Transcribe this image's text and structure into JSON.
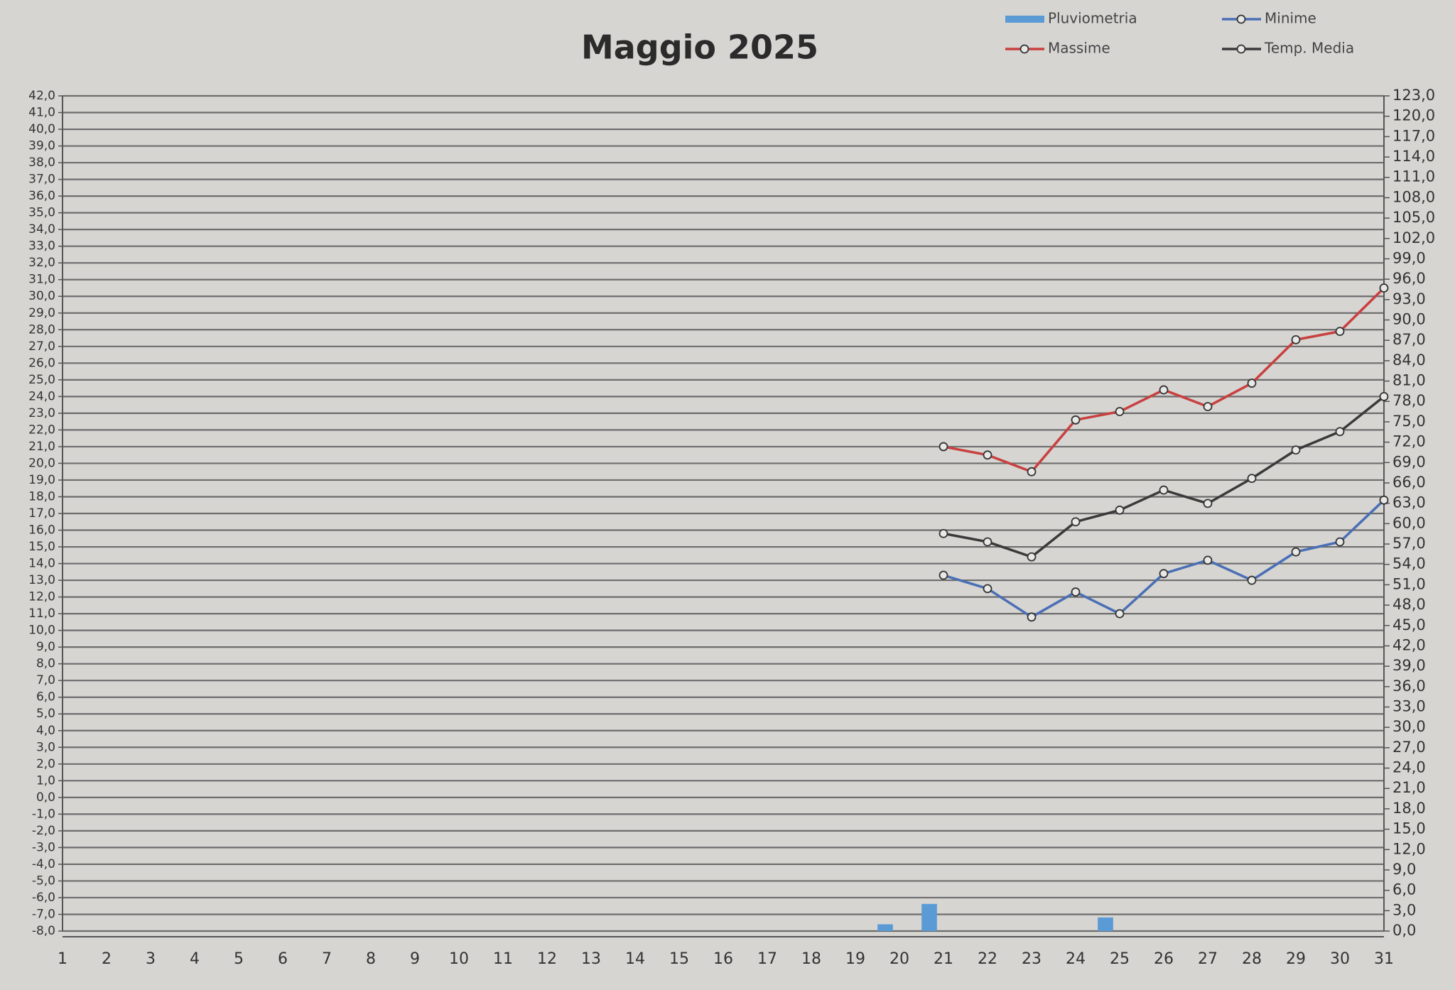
{
  "chart_data": {
    "type": "line",
    "title": "Maggio 2025",
    "categories": [
      "1",
      "2",
      "3",
      "4",
      "5",
      "6",
      "7",
      "8",
      "9",
      "10",
      "11",
      "12",
      "13",
      "14",
      "15",
      "16",
      "17",
      "18",
      "19",
      "20",
      "21",
      "22",
      "23",
      "24",
      "25",
      "26",
      "27",
      "28",
      "29",
      "30",
      "31"
    ],
    "series": [
      {
        "name": "Pluviometria",
        "color": "#5b9bd5",
        "type": "bar",
        "axis": "y2",
        "values": [
          null,
          null,
          null,
          null,
          null,
          null,
          null,
          null,
          null,
          null,
          null,
          null,
          null,
          null,
          null,
          null,
          null,
          null,
          null,
          1.0,
          4.0,
          null,
          null,
          null,
          2.0,
          null,
          null,
          null,
          null,
          null,
          null
        ]
      },
      {
        "name": "Minime",
        "color": "#4a6fb5",
        "values": [
          null,
          null,
          null,
          null,
          null,
          null,
          null,
          null,
          null,
          null,
          null,
          null,
          null,
          null,
          null,
          null,
          null,
          null,
          null,
          null,
          13.3,
          12.5,
          10.8,
          12.3,
          11.0,
          13.4,
          14.2,
          13.0,
          14.7,
          15.3,
          17.8
        ]
      },
      {
        "name": "Massime",
        "color": "#c8403f",
        "values": [
          null,
          null,
          null,
          null,
          null,
          null,
          null,
          null,
          null,
          null,
          null,
          null,
          null,
          null,
          null,
          null,
          null,
          null,
          null,
          null,
          21.0,
          20.5,
          19.5,
          22.6,
          23.1,
          24.4,
          23.4,
          24.8,
          27.4,
          27.9,
          30.5
        ]
      },
      {
        "name": "Temp. Media",
        "color": "#3a3a3a",
        "values": [
          null,
          null,
          null,
          null,
          null,
          null,
          null,
          null,
          null,
          null,
          null,
          null,
          null,
          null,
          null,
          null,
          null,
          null,
          null,
          null,
          15.8,
          15.3,
          14.4,
          16.5,
          17.2,
          18.4,
          17.6,
          19.1,
          20.8,
          21.9,
          24.0
        ]
      }
    ],
    "ylim": [
      -8,
      42
    ],
    "yticks": [
      {
        "value": -8,
        "label": "-8,0"
      },
      {
        "value": -7,
        "label": "-7,0"
      },
      {
        "value": -6,
        "label": "-6,0"
      },
      {
        "value": -5,
        "label": "-5,0"
      },
      {
        "value": -4,
        "label": "-4,0"
      },
      {
        "value": -3,
        "label": "-3,0"
      },
      {
        "value": -2,
        "label": "-2,0"
      },
      {
        "value": -1,
        "label": "-1,0"
      },
      {
        "value": 0,
        "label": "0,0"
      },
      {
        "value": 1,
        "label": "1,0"
      },
      {
        "value": 2,
        "label": "2,0"
      },
      {
        "value": 3,
        "label": "3,0"
      },
      {
        "value": 4,
        "label": "4,0"
      },
      {
        "value": 5,
        "label": "5,0"
      },
      {
        "value": 6,
        "label": "6,0"
      },
      {
        "value": 7,
        "label": "7,0"
      },
      {
        "value": 8,
        "label": "8,0"
      },
      {
        "value": 9,
        "label": "9,0"
      },
      {
        "value": 10,
        "label": "10,0"
      },
      {
        "value": 11,
        "label": "11,0"
      },
      {
        "value": 12,
        "label": "12,0"
      },
      {
        "value": 13,
        "label": "13,0"
      },
      {
        "value": 14,
        "label": "14,0"
      },
      {
        "value": 15,
        "label": "15,0"
      },
      {
        "value": 16,
        "label": "16,0"
      },
      {
        "value": 17,
        "label": "17,0"
      },
      {
        "value": 18,
        "label": "18,0"
      },
      {
        "value": 19,
        "label": "19,0"
      },
      {
        "value": 20,
        "label": "20,0"
      },
      {
        "value": 21,
        "label": "21,0"
      },
      {
        "value": 22,
        "label": "22,0"
      },
      {
        "value": 23,
        "label": "23,0"
      },
      {
        "value": 24,
        "label": "24,0"
      },
      {
        "value": 25,
        "label": "25,0"
      },
      {
        "value": 26,
        "label": "26,0"
      },
      {
        "value": 27,
        "label": "27,0"
      },
      {
        "value": 28,
        "label": "28,0"
      },
      {
        "value": 29,
        "label": "29,0"
      },
      {
        "value": 30,
        "label": "30,0"
      },
      {
        "value": 31,
        "label": "31,0"
      },
      {
        "value": 32,
        "label": "32,0"
      },
      {
        "value": 33,
        "label": "33,0"
      },
      {
        "value": 34,
        "label": "34,0"
      },
      {
        "value": 35,
        "label": "35,0"
      },
      {
        "value": 36,
        "label": "36,0"
      },
      {
        "value": 37,
        "label": "37,0"
      },
      {
        "value": 38,
        "label": "38,0"
      },
      {
        "value": 39,
        "label": "39,0"
      },
      {
        "value": 40,
        "label": "40,0"
      },
      {
        "value": 41,
        "label": "41,0"
      },
      {
        "value": 42,
        "label": "42,0"
      }
    ],
    "y2lim": [
      0,
      123
    ],
    "y2ticks": [
      {
        "value": 0,
        "label": "0,0"
      },
      {
        "value": 3,
        "label": "3,0"
      },
      {
        "value": 6,
        "label": "6,0"
      },
      {
        "value": 9,
        "label": "9,0"
      },
      {
        "value": 12,
        "label": "12,0"
      },
      {
        "value": 15,
        "label": "15,0"
      },
      {
        "value": 18,
        "label": "18,0"
      },
      {
        "value": 21,
        "label": "21,0"
      },
      {
        "value": 24,
        "label": "24,0"
      },
      {
        "value": 27,
        "label": "27,0"
      },
      {
        "value": 30,
        "label": "30,0"
      },
      {
        "value": 33,
        "label": "33,0"
      },
      {
        "value": 36,
        "label": "36,0"
      },
      {
        "value": 39,
        "label": "39,0"
      },
      {
        "value": 42,
        "label": "42,0"
      },
      {
        "value": 45,
        "label": "45,0"
      },
      {
        "value": 48,
        "label": "48,0"
      },
      {
        "value": 51,
        "label": "51,0"
      },
      {
        "value": 54,
        "label": "54,0"
      },
      {
        "value": 57,
        "label": "57,0"
      },
      {
        "value": 60,
        "label": "60,0"
      },
      {
        "value": 63,
        "label": "63,0"
      },
      {
        "value": 66,
        "label": "66,0"
      },
      {
        "value": 69,
        "label": "69,0"
      },
      {
        "value": 72,
        "label": "72,0"
      },
      {
        "value": 75,
        "label": "75,0"
      },
      {
        "value": 78,
        "label": "78,0"
      },
      {
        "value": 81,
        "label": "81,0"
      },
      {
        "value": 84,
        "label": "84,0"
      },
      {
        "value": 87,
        "label": "87,0"
      },
      {
        "value": 90,
        "label": "90,0"
      },
      {
        "value": 93,
        "label": "93,0"
      },
      {
        "value": 96,
        "label": "96,0"
      },
      {
        "value": 99,
        "label": "99,0"
      },
      {
        "value": 102,
        "label": "102,0"
      },
      {
        "value": 105,
        "label": "105,0"
      },
      {
        "value": 108,
        "label": "108,0"
      },
      {
        "value": 111,
        "label": "111,0"
      },
      {
        "value": 114,
        "label": "114,0"
      },
      {
        "value": 117,
        "label": "117,0"
      },
      {
        "value": 120,
        "label": "120,0"
      },
      {
        "value": 123,
        "label": "123,0"
      }
    ],
    "grid": true,
    "legend": "top-right"
  }
}
